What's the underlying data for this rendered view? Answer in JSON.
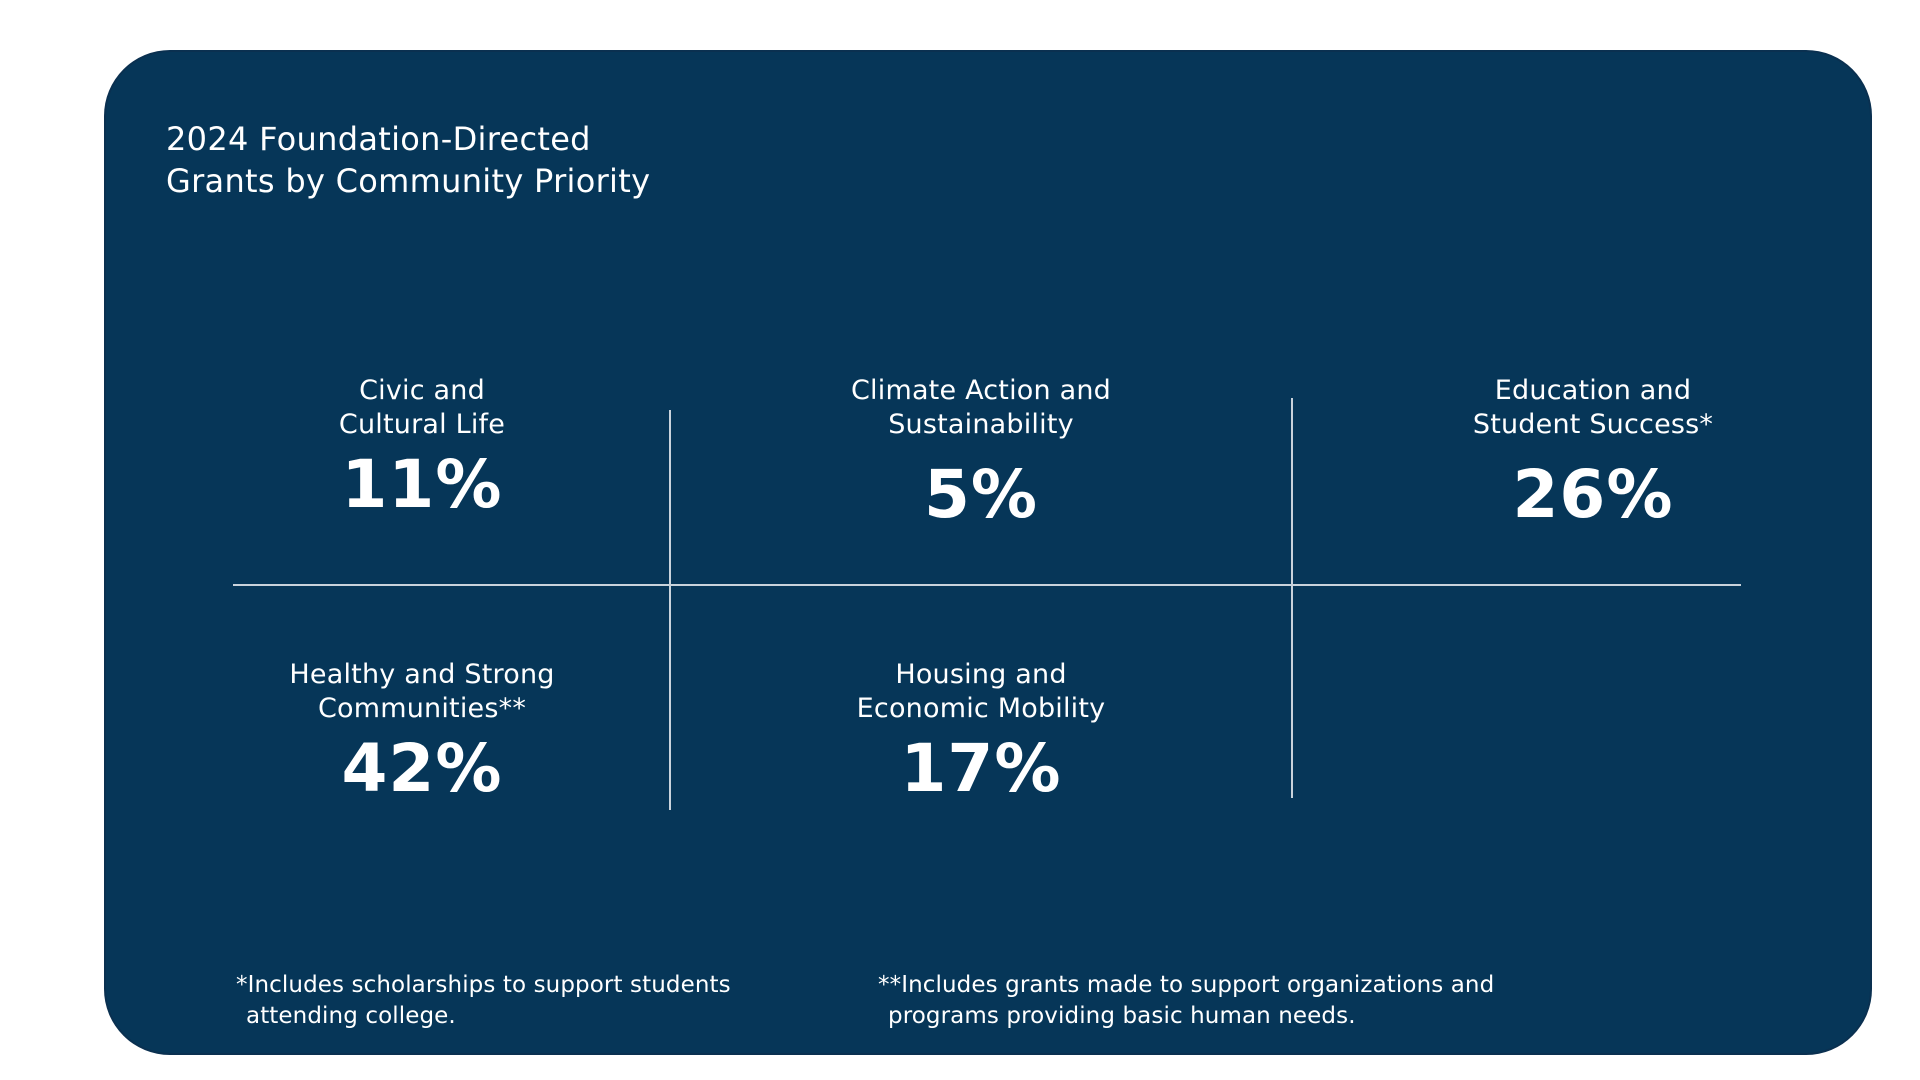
{
  "chart_data": {
    "type": "table",
    "title": "2024 Foundation-Directed Grants by Community Priority",
    "title_lines": [
      "2024 Foundation-Directed",
      "Grants by Community Priority"
    ],
    "unit": "%",
    "categories": [
      "Civic and Cultural Life",
      "Climate Action and Sustainability",
      "Education and Student Success*",
      "Healthy and Strong Communities**",
      "Housing and Economic Mobility"
    ],
    "values": [
      11,
      5,
      26,
      42,
      17
    ],
    "items": [
      {
        "label_lines": [
          "Civic and",
          "Cultural Life"
        ],
        "value_text": "11%"
      },
      {
        "label_lines": [
          "Climate Action and",
          "Sustainability"
        ],
        "value_text": "5%"
      },
      {
        "label_lines": [
          "Education and",
          "Student Success*"
        ],
        "value_text": "26%"
      },
      {
        "label_lines": [
          "Healthy and Strong",
          "Communities**"
        ],
        "value_text": "42%"
      },
      {
        "label_lines": [
          "Housing and",
          "Economic Mobility"
        ],
        "value_text": "17%"
      }
    ],
    "footnotes": [
      {
        "lines": [
          "*Includes scholarships to support students",
          "attending college."
        ]
      },
      {
        "lines": [
          "**Includes grants made to support organizations and",
          "programs providing basic human needs."
        ]
      }
    ]
  },
  "colors": {
    "panel_background": "#063658",
    "text": "#ffffff",
    "divider": "#c9d3dc",
    "page_background": "#ffffff"
  }
}
